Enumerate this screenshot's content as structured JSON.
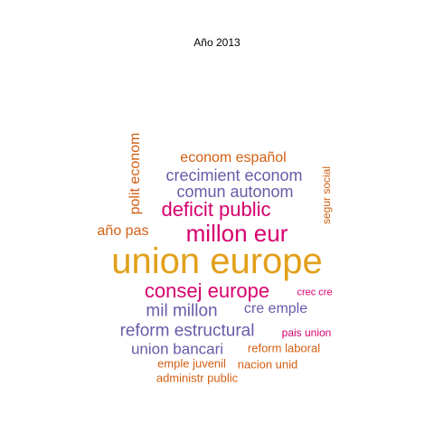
{
  "title": "Año 2013",
  "colors": {
    "orange": "#d35f13",
    "purple": "#6b5aa8",
    "magenta": "#d6006e",
    "gold": "#e2a01a"
  },
  "words": [
    {
      "text": "econom español",
      "color": "orange"
    },
    {
      "text": "crecimient econom",
      "color": "purple"
    },
    {
      "text": "comun autonom",
      "color": "purple"
    },
    {
      "text": "deficit public",
      "color": "magenta"
    },
    {
      "text": "millon eur",
      "color": "magenta"
    },
    {
      "text": "año pas",
      "color": "orange"
    },
    {
      "text": "union europe",
      "color": "gold"
    },
    {
      "text": "consej europe",
      "color": "magenta"
    },
    {
      "text": "crec cre",
      "color": "magenta"
    },
    {
      "text": "mil millon",
      "color": "purple"
    },
    {
      "text": "cre emple",
      "color": "purple"
    },
    {
      "text": "reform estructural",
      "color": "purple"
    },
    {
      "text": "pais union",
      "color": "magenta"
    },
    {
      "text": "union bancari",
      "color": "purple"
    },
    {
      "text": "reform laboral",
      "color": "orange"
    },
    {
      "text": "emple juvenil",
      "color": "orange"
    },
    {
      "text": "nacion unid",
      "color": "orange"
    },
    {
      "text": "administr public",
      "color": "orange"
    },
    {
      "text": "polit econom",
      "color": "orange"
    },
    {
      "text": "segur social",
      "color": "orange"
    }
  ]
}
